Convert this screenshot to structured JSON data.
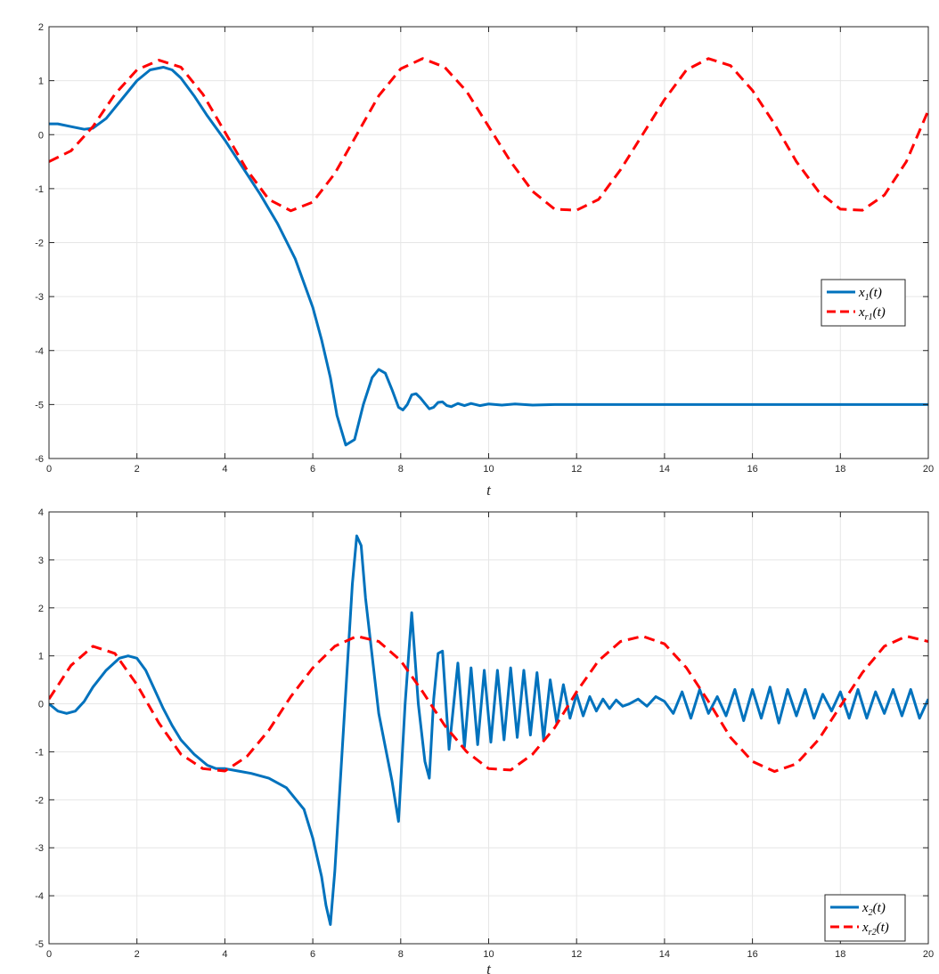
{
  "chart_data": [
    {
      "type": "line",
      "xlabel": "t",
      "ylabel": "",
      "xlim": [
        0,
        20
      ],
      "ylim": [
        -6,
        2
      ],
      "xticks": [
        0,
        2,
        4,
        6,
        8,
        10,
        12,
        14,
        16,
        18,
        20
      ],
      "yticks": [
        -6,
        -5,
        -4,
        -3,
        -2,
        -1,
        0,
        1,
        2
      ],
      "xtick_labels": [
        "0",
        "2",
        "4",
        "6",
        "8",
        "10",
        "12",
        "14",
        "16",
        "18",
        "20"
      ],
      "ytick_labels": [
        "-6",
        "-5",
        "-4",
        "-3",
        "-2",
        "-1",
        "0",
        "1",
        "2"
      ],
      "grid": true,
      "legend_placement": "right",
      "series": [
        {
          "name": "x_1(t)",
          "legend_main": "x",
          "legend_sub": "1",
          "legend_tail": "(t)",
          "style": "solid",
          "color": "#0072BD",
          "x": [
            0,
            0.2,
            0.5,
            0.8,
            1.0,
            1.3,
            1.6,
            2.0,
            2.3,
            2.6,
            2.8,
            3.0,
            3.3,
            3.6,
            4.0,
            4.4,
            4.8,
            5.2,
            5.6,
            6.0,
            6.2,
            6.4,
            6.55,
            6.75,
            6.95,
            7.15,
            7.35,
            7.5,
            7.65,
            7.8,
            7.95,
            8.05,
            8.15,
            8.25,
            8.35,
            8.45,
            8.55,
            8.65,
            8.75,
            8.85,
            8.95,
            9.05,
            9.15,
            9.3,
            9.45,
            9.6,
            9.8,
            10.0,
            10.3,
            10.6,
            11.0,
            11.5,
            12.0,
            13.0,
            14.0,
            16.0,
            18.0,
            20.0
          ],
          "y": [
            0.2,
            0.2,
            0.15,
            0.1,
            0.12,
            0.3,
            0.6,
            1.0,
            1.2,
            1.25,
            1.2,
            1.05,
            0.72,
            0.35,
            -0.1,
            -0.6,
            -1.1,
            -1.65,
            -2.3,
            -3.2,
            -3.8,
            -4.5,
            -5.2,
            -5.75,
            -5.65,
            -5.0,
            -4.5,
            -4.35,
            -4.42,
            -4.72,
            -5.05,
            -5.1,
            -5.0,
            -4.82,
            -4.8,
            -4.88,
            -4.98,
            -5.08,
            -5.05,
            -4.96,
            -4.95,
            -5.02,
            -5.04,
            -4.98,
            -5.02,
            -4.98,
            -5.02,
            -4.99,
            -5.01,
            -4.99,
            -5.01,
            -5.0,
            -5.0,
            -5.0,
            -5.0,
            -5.0,
            -5.0,
            -5.0
          ]
        },
        {
          "name": "x_r1(t)",
          "legend_main": "x",
          "legend_sub": "r1",
          "legend_tail": "(t)",
          "style": "dashed",
          "color": "#FF0000",
          "x": [
            0,
            0.5,
            1.0,
            1.5,
            2.0,
            2.5,
            3.0,
            3.5,
            4.0,
            4.5,
            5.0,
            5.5,
            6.0,
            6.5,
            7.0,
            7.5,
            8.0,
            8.5,
            9.0,
            9.5,
            10.0,
            10.5,
            11.0,
            11.5,
            12.0,
            12.5,
            13.0,
            13.5,
            14.0,
            14.5,
            15.0,
            15.5,
            16.0,
            16.5,
            17.0,
            17.5,
            18.0,
            18.5,
            19.0,
            19.5,
            20.0
          ],
          "y": [
            -0.5,
            -0.3,
            0.15,
            0.75,
            1.2,
            1.38,
            1.25,
            0.75,
            0.05,
            -0.65,
            -1.2,
            -1.41,
            -1.25,
            -0.72,
            0.0,
            0.72,
            1.22,
            1.41,
            1.25,
            0.8,
            0.15,
            -0.5,
            -1.05,
            -1.38,
            -1.4,
            -1.2,
            -0.65,
            0.0,
            0.65,
            1.2,
            1.41,
            1.28,
            0.82,
            0.2,
            -0.5,
            -1.05,
            -1.38,
            -1.4,
            -1.12,
            -0.5,
            0.45
          ]
        }
      ]
    },
    {
      "type": "line",
      "xlabel": "t",
      "ylabel": "",
      "xlim": [
        0,
        20
      ],
      "ylim": [
        -5,
        4
      ],
      "xticks": [
        0,
        2,
        4,
        6,
        8,
        10,
        12,
        14,
        16,
        18,
        20
      ],
      "yticks": [
        -5,
        -4,
        -3,
        -2,
        -1,
        0,
        1,
        2,
        3,
        4
      ],
      "xtick_labels": [
        "0",
        "2",
        "4",
        "6",
        "8",
        "10",
        "12",
        "14",
        "16",
        "18",
        "20"
      ],
      "ytick_labels": [
        "-5",
        "-4",
        "-3",
        "-2",
        "-1",
        "0",
        "1",
        "2",
        "3",
        "4"
      ],
      "grid": true,
      "legend_placement": "bottom-right",
      "series": [
        {
          "name": "x_2(t)",
          "legend_main": "x",
          "legend_sub": "2",
          "legend_tail": "(t)",
          "style": "solid",
          "color": "#0072BD",
          "x": [
            0,
            0.2,
            0.4,
            0.6,
            0.8,
            1.0,
            1.3,
            1.6,
            1.8,
            2.0,
            2.2,
            2.4,
            2.6,
            2.8,
            3.0,
            3.3,
            3.6,
            3.8,
            4.0,
            4.3,
            4.6,
            5.0,
            5.4,
            5.8,
            6.0,
            6.2,
            6.3,
            6.4,
            6.5,
            6.7,
            6.9,
            7.0,
            7.1,
            7.2,
            7.5,
            7.8,
            7.95,
            8.1,
            8.25,
            8.4,
            8.55,
            8.65,
            8.75,
            8.85,
            8.95,
            9.1,
            9.3,
            9.45,
            9.6,
            9.75,
            9.9,
            10.05,
            10.2,
            10.35,
            10.5,
            10.65,
            10.8,
            10.95,
            11.1,
            11.25,
            11.4,
            11.55,
            11.7,
            11.85,
            12.0,
            12.15,
            12.3,
            12.45,
            12.6,
            12.75,
            12.9,
            13.05,
            13.2,
            13.4,
            13.6,
            13.8,
            14.0,
            14.2,
            14.4,
            14.6,
            14.8,
            15.0,
            15.2,
            15.4,
            15.6,
            15.8,
            16.0,
            16.2,
            16.4,
            16.6,
            16.8,
            17.0,
            17.2,
            17.4,
            17.6,
            17.8,
            18.0,
            18.2,
            18.4,
            18.6,
            18.8,
            19.0,
            19.2,
            19.4,
            19.6,
            19.8,
            20.0
          ],
          "y": [
            0.0,
            -0.15,
            -0.2,
            -0.15,
            0.05,
            0.35,
            0.7,
            0.95,
            1.0,
            0.95,
            0.7,
            0.3,
            -0.1,
            -0.45,
            -0.75,
            -1.05,
            -1.28,
            -1.35,
            -1.35,
            -1.4,
            -1.45,
            -1.55,
            -1.75,
            -2.2,
            -2.8,
            -3.6,
            -4.2,
            -4.6,
            -3.5,
            -0.5,
            2.5,
            3.5,
            3.3,
            2.2,
            -0.2,
            -1.6,
            -2.45,
            0.0,
            1.9,
            0.0,
            -1.2,
            -1.55,
            0.1,
            1.05,
            1.1,
            -0.95,
            0.85,
            -0.9,
            0.75,
            -0.85,
            0.7,
            -0.8,
            0.7,
            -0.75,
            0.75,
            -0.7,
            0.7,
            -0.65,
            0.65,
            -0.75,
            0.5,
            -0.4,
            0.4,
            -0.3,
            0.2,
            -0.25,
            0.15,
            -0.15,
            0.1,
            -0.1,
            0.08,
            -0.05,
            0.0,
            0.1,
            -0.05,
            0.15,
            0.05,
            -0.2,
            0.25,
            -0.3,
            0.3,
            -0.2,
            0.15,
            -0.25,
            0.3,
            -0.35,
            0.3,
            -0.3,
            0.35,
            -0.4,
            0.3,
            -0.25,
            0.3,
            -0.3,
            0.2,
            -0.15,
            0.25,
            -0.3,
            0.3,
            -0.3,
            0.25,
            -0.2,
            0.3,
            -0.25,
            0.3,
            -0.3,
            0.1
          ]
        },
        {
          "name": "x_r2(t)",
          "legend_main": "x",
          "legend_sub": "r2",
          "legend_tail": "(t)",
          "style": "dashed",
          "color": "#FF0000",
          "x": [
            0,
            0.5,
            1.0,
            1.5,
            2.0,
            2.5,
            3.0,
            3.5,
            4.0,
            4.5,
            5.0,
            5.5,
            6.0,
            6.5,
            7.0,
            7.5,
            8.0,
            8.5,
            9.0,
            9.5,
            10.0,
            10.5,
            11.0,
            11.5,
            12.0,
            12.5,
            13.0,
            13.5,
            14.0,
            14.5,
            15.0,
            15.5,
            16.0,
            16.5,
            17.0,
            17.5,
            18.0,
            18.5,
            19.0,
            19.5,
            20.0
          ],
          "y": [
            0.1,
            0.8,
            1.2,
            1.05,
            0.4,
            -0.4,
            -1.05,
            -1.35,
            -1.4,
            -1.1,
            -0.55,
            0.15,
            0.75,
            1.2,
            1.41,
            1.3,
            0.9,
            0.25,
            -0.45,
            -1.0,
            -1.35,
            -1.38,
            -1.05,
            -0.5,
            0.25,
            0.9,
            1.3,
            1.41,
            1.25,
            0.75,
            0.05,
            -0.7,
            -1.2,
            -1.41,
            -1.25,
            -0.75,
            -0.05,
            0.65,
            1.2,
            1.41,
            1.3
          ]
        }
      ]
    }
  ]
}
